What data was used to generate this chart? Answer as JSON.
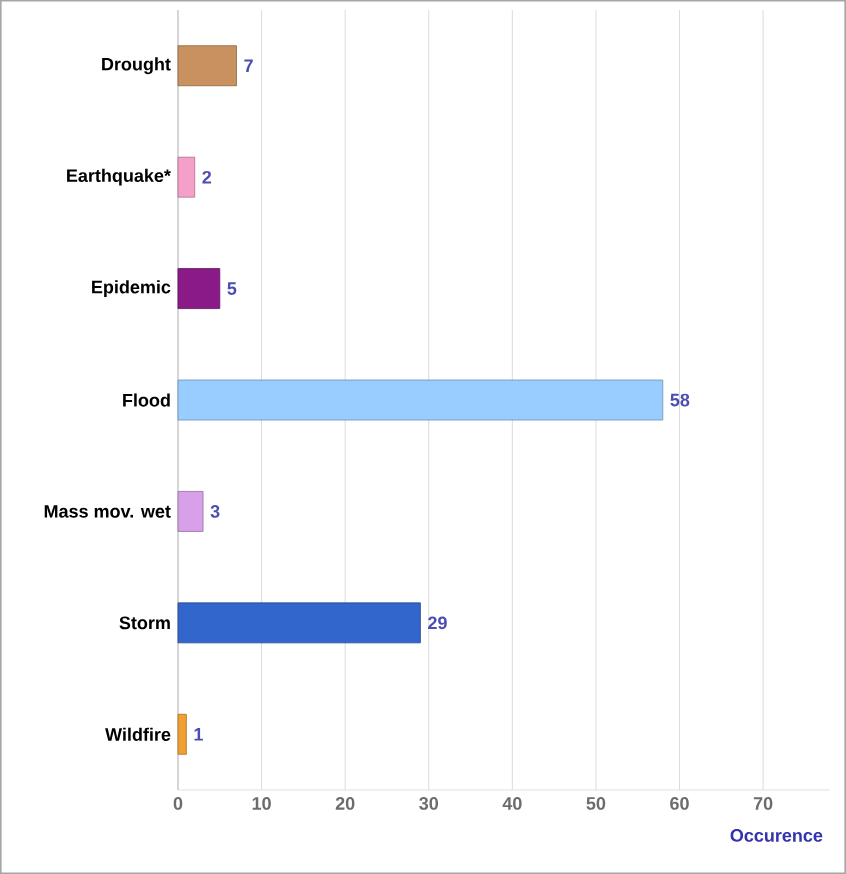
{
  "chart_data": {
    "type": "bar",
    "orientation": "horizontal",
    "xlabel": "Occurence",
    "categories": [
      "Drought",
      "Earthquake*",
      "Epidemic",
      "Flood",
      "Mass mov. wet",
      "Storm",
      "Wildfire"
    ],
    "values": [
      7,
      2,
      5,
      58,
      3,
      29,
      1
    ],
    "colors": [
      "#c8915f",
      "#f4a0c8",
      "#8b1a89",
      "#99ccff",
      "#d8a0e8",
      "#3366cc",
      "#f0a030"
    ],
    "xlim": [
      0,
      78
    ],
    "xticks": [
      0,
      10,
      20,
      30,
      40,
      50,
      60,
      70
    ],
    "grid": "x",
    "data_labels": true
  }
}
